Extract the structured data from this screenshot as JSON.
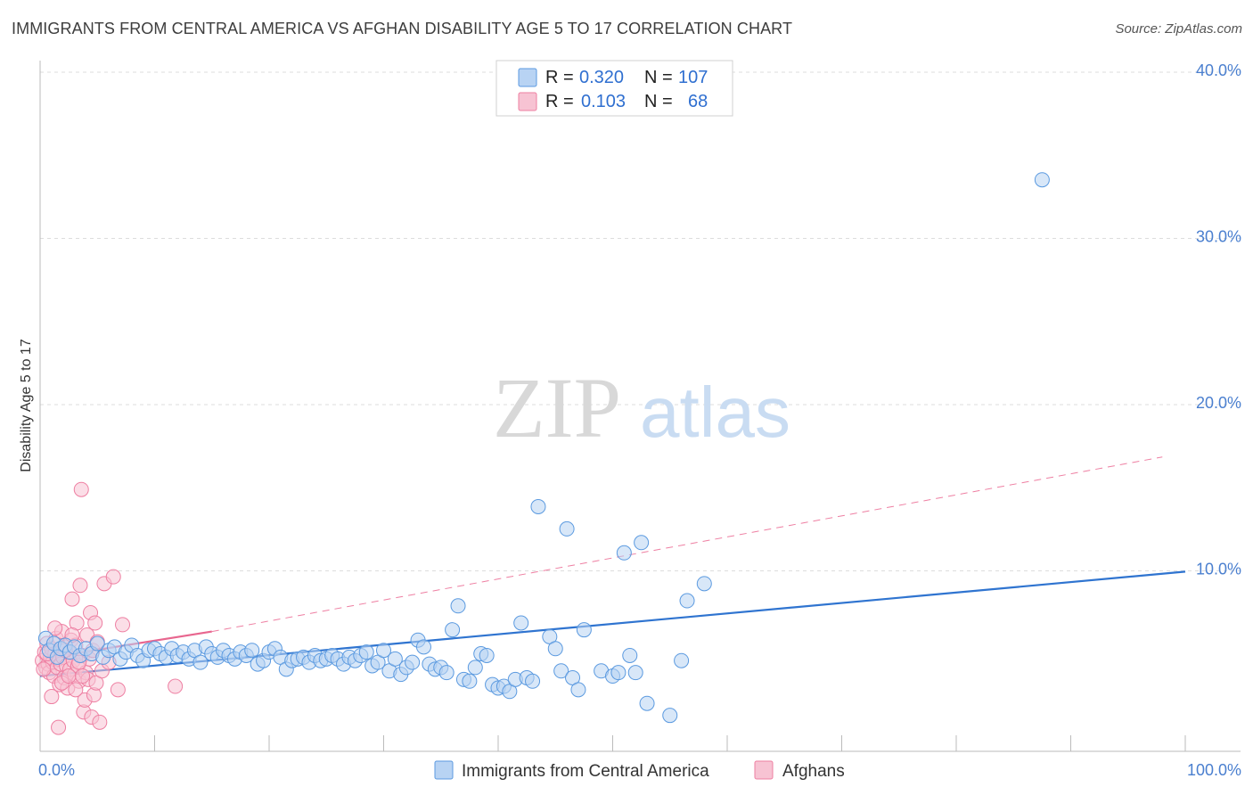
{
  "title": "IMMIGRANTS FROM CENTRAL AMERICA VS AFGHAN DISABILITY AGE 5 TO 17 CORRELATION CHART",
  "source": "Source: ZipAtlas.com",
  "watermark": {
    "zip": "ZIP",
    "atlas": "atlas"
  },
  "colors": {
    "blue": "#5b9ae0",
    "blue_fill": "#b8d3f3",
    "blue_line": "#2f74d0",
    "pink": "#ee7fa2",
    "pink_fill": "#f7c3d3",
    "pink_line": "#e8668f",
    "tick_text": "#4a7fcf"
  },
  "legend": {
    "rows": [
      {
        "r_label": "R =",
        "r_value": "0.320",
        "n_label": "N =",
        "n_value": "107",
        "series": "blue"
      },
      {
        "r_label": "R =",
        "r_value": "0.103",
        "n_label": "N =",
        "n_value": "68",
        "series": "pink"
      }
    ]
  },
  "bottom_legend": [
    {
      "label": "Immigrants from Central America",
      "series": "blue"
    },
    {
      "label": "Afghans",
      "series": "pink"
    }
  ],
  "chart_data": {
    "type": "scatter",
    "xlabel": "",
    "ylabel": "Disability Age 5 to 17",
    "xlim": [
      0,
      100
    ],
    "ylim": [
      0,
      40
    ],
    "x_tick_labels": [
      "0.0%",
      "100.0%"
    ],
    "y_ticks": [
      10,
      20,
      30,
      40
    ],
    "y_tick_labels": [
      "10.0%",
      "20.0%",
      "30.0%",
      "40.0%"
    ],
    "grid": "horizontal-dashed",
    "legend_position": "top-center",
    "series": [
      {
        "name": "Immigrants from Central America",
        "color": "blue",
        "trend": {
          "x0": 0,
          "y0": 4.4,
          "x1": 100,
          "y1": 10.5,
          "style": "solid"
        },
        "points": [
          [
            0.5,
            6.6
          ],
          [
            0.8,
            5.9
          ],
          [
            1.2,
            6.3
          ],
          [
            1.5,
            5.5
          ],
          [
            1.8,
            6.0
          ],
          [
            2.2,
            6.2
          ],
          [
            2.6,
            5.8
          ],
          [
            3.0,
            6.1
          ],
          [
            3.5,
            5.6
          ],
          [
            4.0,
            6.0
          ],
          [
            4.5,
            5.7
          ],
          [
            5.0,
            6.3
          ],
          [
            5.5,
            5.5
          ],
          [
            6.0,
            5.9
          ],
          [
            6.5,
            6.1
          ],
          [
            7.0,
            5.4
          ],
          [
            7.5,
            5.8
          ],
          [
            8.0,
            6.2
          ],
          [
            8.5,
            5.6
          ],
          [
            9.0,
            5.3
          ],
          [
            9.5,
            5.9
          ],
          [
            10.0,
            6.0
          ],
          [
            10.5,
            5.7
          ],
          [
            11.0,
            5.5
          ],
          [
            11.5,
            6.0
          ],
          [
            12.0,
            5.6
          ],
          [
            12.5,
            5.8
          ],
          [
            13.0,
            5.4
          ],
          [
            13.5,
            5.9
          ],
          [
            14.0,
            5.2
          ],
          [
            14.5,
            6.1
          ],
          [
            15.0,
            5.7
          ],
          [
            15.5,
            5.5
          ],
          [
            16.0,
            5.9
          ],
          [
            16.5,
            5.6
          ],
          [
            17.0,
            5.4
          ],
          [
            17.5,
            5.8
          ],
          [
            18.0,
            5.6
          ],
          [
            18.5,
            5.9
          ],
          [
            19.0,
            5.1
          ],
          [
            19.5,
            5.3
          ],
          [
            20.0,
            5.8
          ],
          [
            20.5,
            6.0
          ],
          [
            21.0,
            5.5
          ],
          [
            21.5,
            4.8
          ],
          [
            22.0,
            5.3
          ],
          [
            22.5,
            5.4
          ],
          [
            23.0,
            5.5
          ],
          [
            23.5,
            5.2
          ],
          [
            24.0,
            5.6
          ],
          [
            24.5,
            5.3
          ],
          [
            25.0,
            5.4
          ],
          [
            25.5,
            5.6
          ],
          [
            26.0,
            5.4
          ],
          [
            26.5,
            5.1
          ],
          [
            27.0,
            5.5
          ],
          [
            27.5,
            5.3
          ],
          [
            28.0,
            5.6
          ],
          [
            28.5,
            5.8
          ],
          [
            29.0,
            5.0
          ],
          [
            29.5,
            5.2
          ],
          [
            30.0,
            5.9
          ],
          [
            30.5,
            4.7
          ],
          [
            31.0,
            5.4
          ],
          [
            31.5,
            4.5
          ],
          [
            32.0,
            4.9
          ],
          [
            32.5,
            5.2
          ],
          [
            33.0,
            6.5
          ],
          [
            33.5,
            6.1
          ],
          [
            34.0,
            5.1
          ],
          [
            34.5,
            4.8
          ],
          [
            35.0,
            4.9
          ],
          [
            35.5,
            4.6
          ],
          [
            36.0,
            7.1
          ],
          [
            36.5,
            8.5
          ],
          [
            37.0,
            4.2
          ],
          [
            37.5,
            4.1
          ],
          [
            38.0,
            4.9
          ],
          [
            38.5,
            5.7
          ],
          [
            39.0,
            5.6
          ],
          [
            39.5,
            3.9
          ],
          [
            40.0,
            3.7
          ],
          [
            40.5,
            3.8
          ],
          [
            41.0,
            3.5
          ],
          [
            41.5,
            4.2
          ],
          [
            42.0,
            7.5
          ],
          [
            42.5,
            4.3
          ],
          [
            43.0,
            4.1
          ],
          [
            43.5,
            14.3
          ],
          [
            44.5,
            6.7
          ],
          [
            45.0,
            6.0
          ],
          [
            45.5,
            4.7
          ],
          [
            46.0,
            13.0
          ],
          [
            46.5,
            4.3
          ],
          [
            47.0,
            3.6
          ],
          [
            47.5,
            7.1
          ],
          [
            49.0,
            4.7
          ],
          [
            50.0,
            4.4
          ],
          [
            50.5,
            4.6
          ],
          [
            51.0,
            11.6
          ],
          [
            51.5,
            5.6
          ],
          [
            52.0,
            4.6
          ],
          [
            52.5,
            12.2
          ],
          [
            53.0,
            2.8
          ],
          [
            55.0,
            2.1
          ],
          [
            56.0,
            5.3
          ],
          [
            56.5,
            8.8
          ],
          [
            58.0,
            9.8
          ],
          [
            87.5,
            33.4
          ]
        ]
      },
      {
        "name": "Afghans",
        "color": "pink",
        "trend": {
          "x0": 0,
          "y0": 5.4,
          "x1": 15,
          "y1": 7.0,
          "style": "solid"
        },
        "trend_extension": {
          "x0": 15,
          "y0": 7.0,
          "x1": 98,
          "y1": 17.2,
          "style": "dashed"
        },
        "points": [
          [
            0.2,
            5.3
          ],
          [
            0.4,
            5.8
          ],
          [
            0.5,
            4.9
          ],
          [
            0.6,
            6.3
          ],
          [
            0.7,
            5.1
          ],
          [
            0.8,
            4.6
          ],
          [
            0.9,
            5.5
          ],
          [
            1.0,
            6.0
          ],
          [
            1.1,
            5.2
          ],
          [
            1.2,
            4.4
          ],
          [
            1.3,
            5.7
          ],
          [
            1.4,
            6.6
          ],
          [
            1.5,
            4.9
          ],
          [
            1.6,
            5.4
          ],
          [
            1.7,
            3.9
          ],
          [
            1.8,
            5.1
          ],
          [
            1.9,
            7.0
          ],
          [
            2.0,
            5.5
          ],
          [
            2.1,
            4.3
          ],
          [
            2.2,
            6.1
          ],
          [
            2.3,
            5.0
          ],
          [
            2.4,
            3.7
          ],
          [
            2.5,
            5.8
          ],
          [
            2.6,
            4.8
          ],
          [
            2.7,
            6.5
          ],
          [
            2.8,
            8.9
          ],
          [
            2.9,
            5.3
          ],
          [
            3.0,
            4.5
          ],
          [
            3.1,
            6.2
          ],
          [
            3.2,
            7.5
          ],
          [
            3.3,
            5.0
          ],
          [
            3.4,
            4.1
          ],
          [
            3.5,
            9.7
          ],
          [
            3.6,
            15.3
          ],
          [
            3.7,
            5.6
          ],
          [
            3.8,
            2.3
          ],
          [
            3.9,
            3.0
          ],
          [
            4.0,
            4.6
          ],
          [
            4.1,
            6.8
          ],
          [
            4.2,
            4.2
          ],
          [
            4.3,
            5.4
          ],
          [
            4.4,
            8.1
          ],
          [
            4.5,
            2.0
          ],
          [
            4.6,
            5.9
          ],
          [
            4.7,
            3.3
          ],
          [
            4.8,
            7.5
          ],
          [
            4.9,
            4.0
          ],
          [
            5.0,
            6.4
          ],
          [
            5.2,
            1.7
          ],
          [
            5.4,
            4.7
          ],
          [
            5.6,
            9.8
          ],
          [
            6.0,
            5.2
          ],
          [
            6.4,
            10.2
          ],
          [
            6.8,
            3.6
          ],
          [
            7.2,
            7.4
          ],
          [
            0.3,
            4.8
          ],
          [
            0.6,
            5.7
          ],
          [
            1.0,
            3.2
          ],
          [
            1.3,
            7.2
          ],
          [
            1.6,
            1.4
          ],
          [
            1.9,
            4.0
          ],
          [
            2.2,
            5.9
          ],
          [
            2.5,
            4.4
          ],
          [
            2.8,
            6.8
          ],
          [
            3.1,
            3.6
          ],
          [
            3.4,
            5.2
          ],
          [
            3.7,
            4.4
          ],
          [
            11.8,
            3.8
          ]
        ]
      }
    ]
  }
}
